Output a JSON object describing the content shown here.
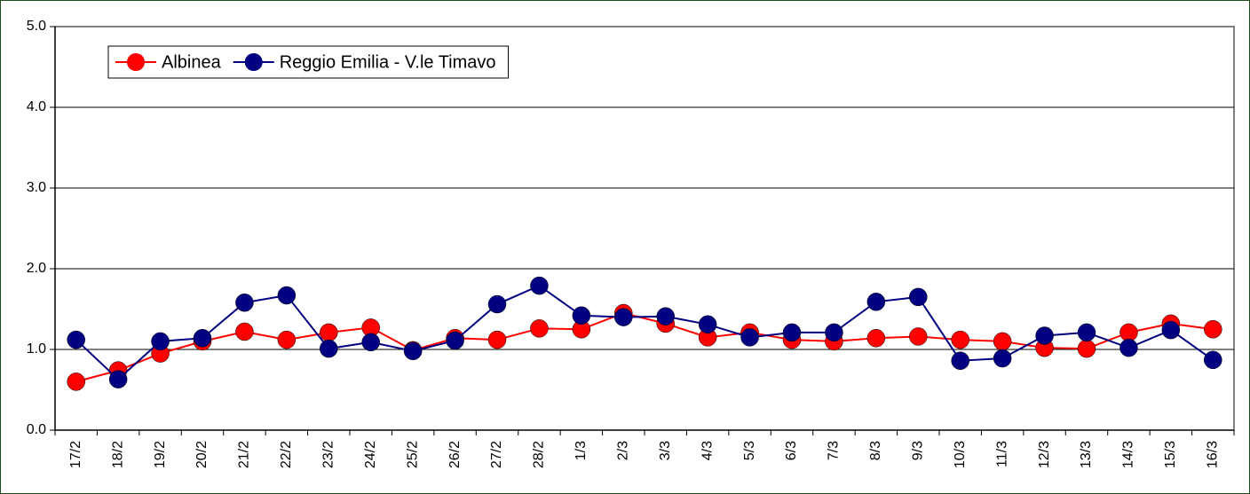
{
  "chart_data": {
    "type": "line",
    "categories": [
      "17/2",
      "18/2",
      "19/2",
      "20/2",
      "21/2",
      "22/2",
      "23/2",
      "24/2",
      "25/2",
      "26/2",
      "27/2",
      "28/2",
      "1/3",
      "2/3",
      "3/3",
      "4/3",
      "5/3",
      "6/3",
      "7/3",
      "8/3",
      "9/3",
      "10/3",
      "11/3",
      "12/3",
      "13/3",
      "14/3",
      "15/3",
      "16/3"
    ],
    "series": [
      {
        "name": "Albinea",
        "color": "#ff0000",
        "values": [
          0.6,
          0.74,
          0.95,
          1.1,
          1.22,
          1.12,
          1.21,
          1.27,
          0.99,
          1.14,
          1.12,
          1.26,
          1.25,
          1.45,
          1.32,
          1.15,
          1.21,
          1.12,
          1.1,
          1.14,
          1.16,
          1.12,
          1.1,
          1.02,
          1.01,
          1.21,
          1.32,
          1.25
        ]
      },
      {
        "name": "Reggio Emilia - V.le Timavo",
        "color": "#000080",
        "values": [
          1.12,
          0.63,
          1.1,
          1.14,
          1.58,
          1.67,
          1.01,
          1.09,
          0.98,
          1.11,
          1.56,
          1.79,
          1.42,
          1.4,
          1.41,
          1.31,
          1.15,
          1.21,
          1.21,
          1.59,
          1.65,
          0.86,
          0.89,
          1.17,
          1.21,
          1.02,
          1.24,
          0.87
        ]
      }
    ],
    "ylim": [
      0,
      5
    ],
    "yticks": [
      {
        "value": 0,
        "label": "0.0"
      },
      {
        "value": 1,
        "label": "1.0"
      },
      {
        "value": 2,
        "label": "2.0"
      },
      {
        "value": 3,
        "label": "3.0"
      },
      {
        "value": 4,
        "label": "4.0"
      },
      {
        "value": 5,
        "label": "5.0"
      }
    ],
    "grid": true,
    "legend": "top-left"
  }
}
